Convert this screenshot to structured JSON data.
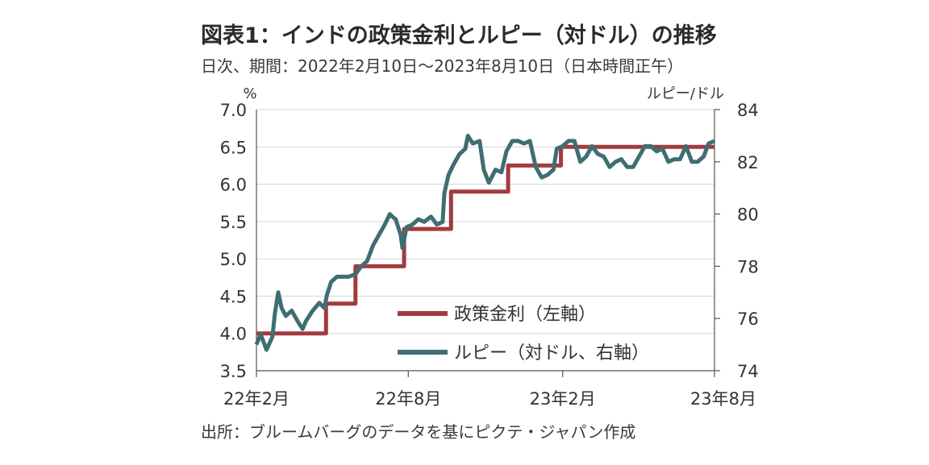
{
  "title": "図表1：インドの政策金利とルピー（対ドル）の推移",
  "subtitle": "日次、期間：2022年2月10日～2023年8月10日（日本時間正午）",
  "source": "出所：ブルームバーグのデータを基にピクテ・ジャパン作成",
  "colors": {
    "policy_rate": "#a33a3f",
    "rupee": "#3f6e72",
    "grid": "#d4d4d4",
    "axis": "#555555"
  },
  "chart_data": {
    "type": "line",
    "grid": true,
    "legend_position": "bottom-right",
    "left_unit": "%",
    "right_unit": "ルピー/ドル",
    "x_range": [
      "2022-02-10",
      "2023-08-10"
    ],
    "x_ticks": [
      {
        "date": "2022-02-10",
        "label": "22年2月"
      },
      {
        "date": "2022-08-10",
        "label": "22年8月"
      },
      {
        "date": "2023-02-10",
        "label": "23年2月"
      },
      {
        "date": "2023-08-10",
        "label": "23年8月"
      }
    ],
    "ylim_left": [
      3.5,
      7.0
    ],
    "yticks_left": [
      "3.5",
      "4.0",
      "4.5",
      "5.0",
      "5.5",
      "6.0",
      "6.5",
      "7.0"
    ],
    "ylim_right": [
      74,
      84
    ],
    "yticks_right": [
      "74",
      "76",
      "78",
      "80",
      "82",
      "84"
    ],
    "series": [
      {
        "name": "政策金利（左軸）",
        "axis": "left",
        "step": true,
        "points": [
          [
            "2022-02-10",
            4.0
          ],
          [
            "2022-05-04",
            4.4
          ],
          [
            "2022-06-08",
            4.9
          ],
          [
            "2022-08-05",
            5.4
          ],
          [
            "2022-09-30",
            5.9
          ],
          [
            "2022-12-07",
            6.25
          ],
          [
            "2023-02-08",
            6.5
          ],
          [
            "2023-08-10",
            6.5
          ]
        ]
      },
      {
        "name": "ルピー（対ドル、右軸）",
        "axis": "right",
        "points": [
          [
            "2022-02-10",
            75.0
          ],
          [
            "2022-02-15",
            75.4
          ],
          [
            "2022-02-22",
            74.8
          ],
          [
            "2022-03-01",
            75.3
          ],
          [
            "2022-03-04",
            76.2
          ],
          [
            "2022-03-08",
            77.0
          ],
          [
            "2022-03-12",
            76.4
          ],
          [
            "2022-03-17",
            76.1
          ],
          [
            "2022-03-24",
            76.3
          ],
          [
            "2022-03-31",
            75.9
          ],
          [
            "2022-04-06",
            75.6
          ],
          [
            "2022-04-10",
            75.9
          ],
          [
            "2022-04-18",
            76.3
          ],
          [
            "2022-04-26",
            76.6
          ],
          [
            "2022-05-02",
            76.4
          ],
          [
            "2022-05-05",
            76.9
          ],
          [
            "2022-05-10",
            77.4
          ],
          [
            "2022-05-17",
            77.6
          ],
          [
            "2022-05-24",
            77.6
          ],
          [
            "2022-05-31",
            77.6
          ],
          [
            "2022-06-08",
            77.7
          ],
          [
            "2022-06-15",
            78.0
          ],
          [
            "2022-06-22",
            78.2
          ],
          [
            "2022-06-29",
            78.8
          ],
          [
            "2022-07-06",
            79.2
          ],
          [
            "2022-07-13",
            79.6
          ],
          [
            "2022-07-19",
            80.0
          ],
          [
            "2022-07-22",
            79.9
          ],
          [
            "2022-07-26",
            79.8
          ],
          [
            "2022-08-01",
            79.2
          ],
          [
            "2022-08-03",
            78.7
          ],
          [
            "2022-08-08",
            79.5
          ],
          [
            "2022-08-15",
            79.6
          ],
          [
            "2022-08-22",
            79.8
          ],
          [
            "2022-08-29",
            79.7
          ],
          [
            "2022-09-06",
            79.9
          ],
          [
            "2022-09-13",
            79.6
          ],
          [
            "2022-09-20",
            79.7
          ],
          [
            "2022-09-22",
            80.8
          ],
          [
            "2022-09-27",
            81.5
          ],
          [
            "2022-10-03",
            81.9
          ],
          [
            "2022-10-10",
            82.3
          ],
          [
            "2022-10-17",
            82.5
          ],
          [
            "2022-10-20",
            83.0
          ],
          [
            "2022-10-26",
            82.7
          ],
          [
            "2022-11-03",
            82.8
          ],
          [
            "2022-11-08",
            81.7
          ],
          [
            "2022-11-14",
            81.2
          ],
          [
            "2022-11-22",
            81.7
          ],
          [
            "2022-11-29",
            81.6
          ],
          [
            "2022-12-05",
            82.4
          ],
          [
            "2022-12-12",
            82.8
          ],
          [
            "2022-12-19",
            82.8
          ],
          [
            "2022-12-26",
            82.7
          ],
          [
            "2023-01-02",
            82.8
          ],
          [
            "2023-01-09",
            81.8
          ],
          [
            "2023-01-16",
            81.4
          ],
          [
            "2023-01-23",
            81.5
          ],
          [
            "2023-01-30",
            81.7
          ],
          [
            "2023-02-03",
            82.5
          ],
          [
            "2023-02-10",
            82.6
          ],
          [
            "2023-02-17",
            82.8
          ],
          [
            "2023-02-24",
            82.8
          ],
          [
            "2023-03-03",
            82.0
          ],
          [
            "2023-03-10",
            82.2
          ],
          [
            "2023-03-17",
            82.6
          ],
          [
            "2023-03-24",
            82.3
          ],
          [
            "2023-03-31",
            82.2
          ],
          [
            "2023-04-07",
            81.8
          ],
          [
            "2023-04-14",
            82.0
          ],
          [
            "2023-04-21",
            82.1
          ],
          [
            "2023-04-28",
            81.8
          ],
          [
            "2023-05-05",
            81.8
          ],
          [
            "2023-05-12",
            82.2
          ],
          [
            "2023-05-19",
            82.6
          ],
          [
            "2023-05-26",
            82.6
          ],
          [
            "2023-06-02",
            82.4
          ],
          [
            "2023-06-09",
            82.5
          ],
          [
            "2023-06-16",
            82.0
          ],
          [
            "2023-06-23",
            82.1
          ],
          [
            "2023-06-30",
            82.1
          ],
          [
            "2023-07-07",
            82.6
          ],
          [
            "2023-07-14",
            82.0
          ],
          [
            "2023-07-21",
            82.0
          ],
          [
            "2023-07-28",
            82.2
          ],
          [
            "2023-08-03",
            82.7
          ],
          [
            "2023-08-10",
            82.8
          ]
        ]
      }
    ]
  }
}
